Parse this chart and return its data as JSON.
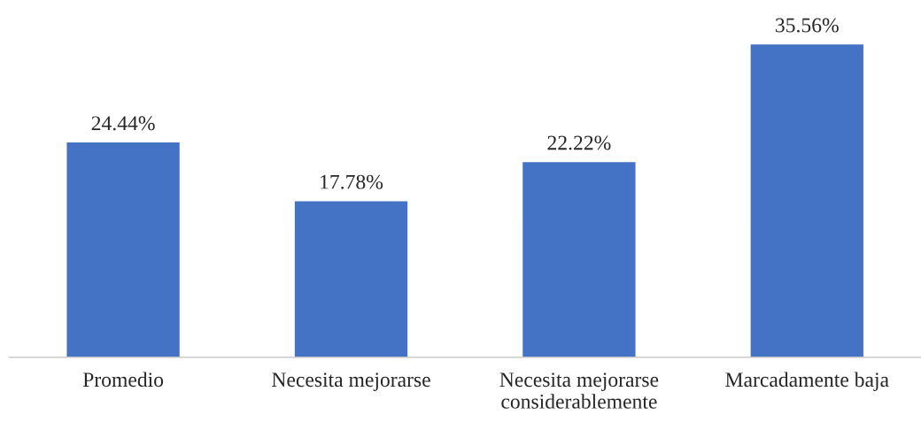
{
  "chart_data": {
    "type": "bar",
    "categories": [
      "Promedio",
      "Necesita mejorarse",
      "Necesita mejorarse\nconsiderablemente",
      "Marcadamente baja"
    ],
    "values": [
      24.44,
      17.78,
      22.22,
      35.56
    ],
    "value_labels": [
      "24.44%",
      "17.78%",
      "22.22%",
      "35.56%"
    ],
    "color": "#4472c4",
    "grid": false,
    "legend": false
  }
}
